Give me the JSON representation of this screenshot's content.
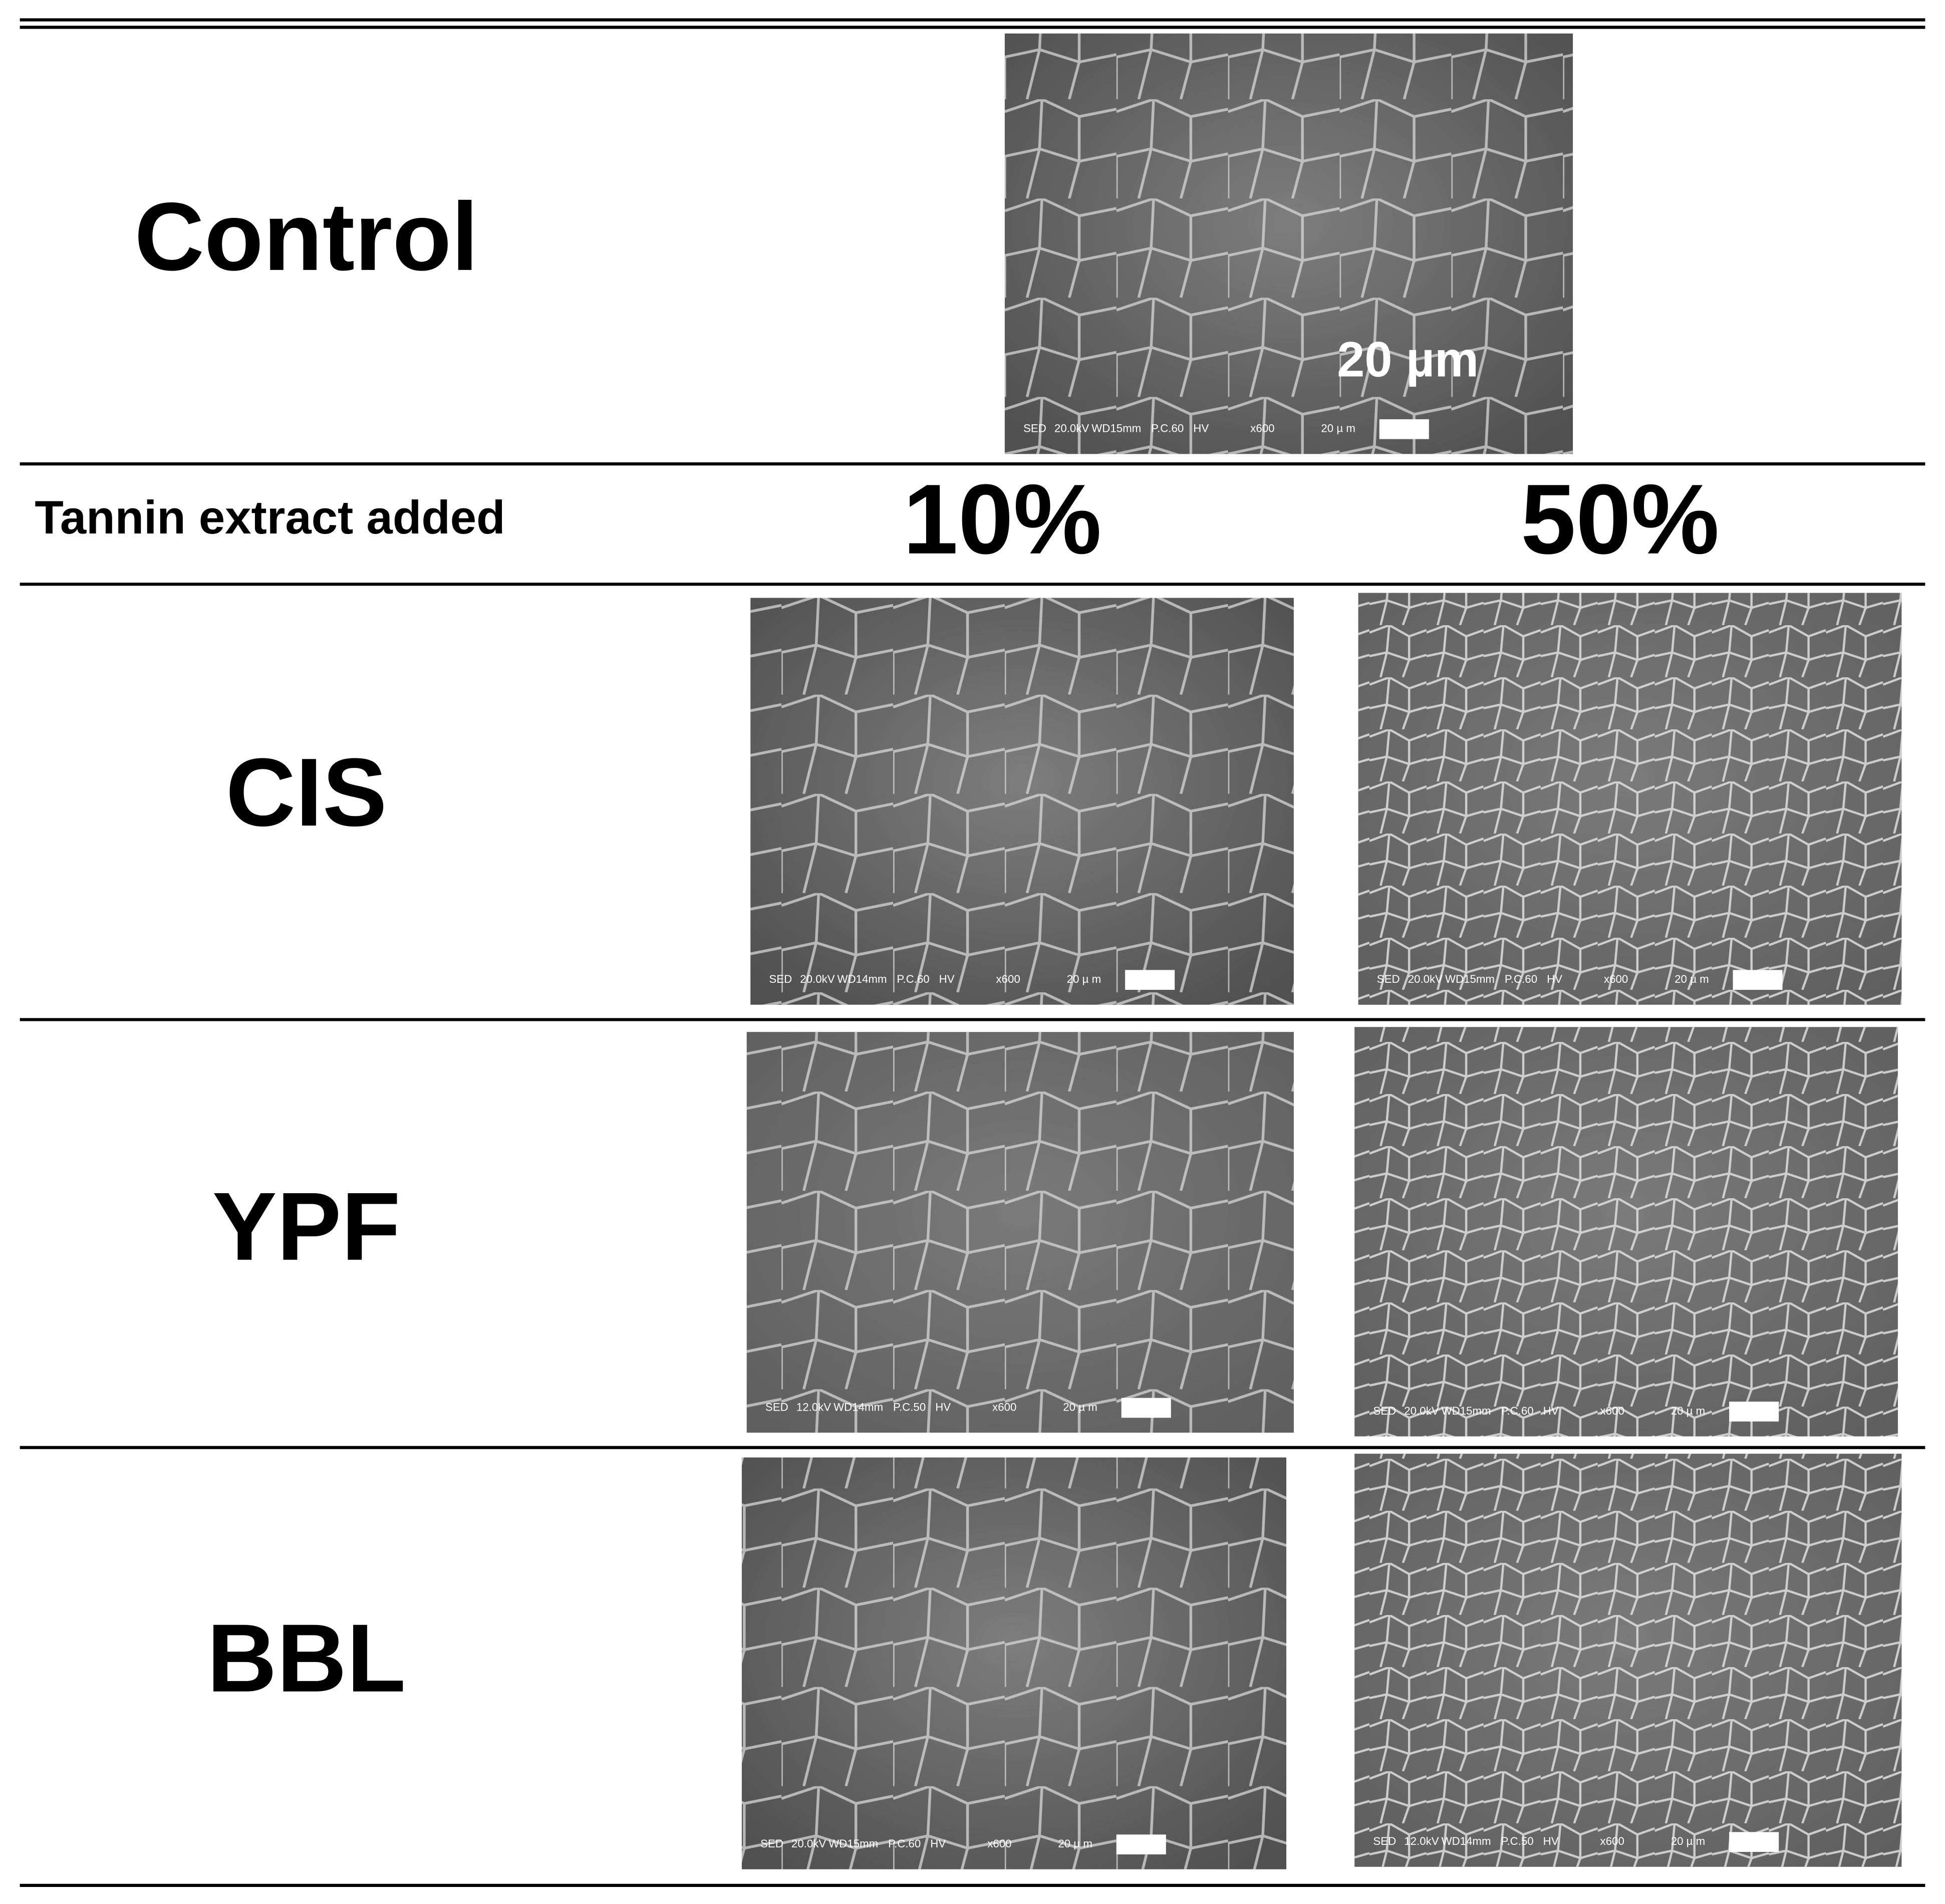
{
  "table": {
    "header_label": "Tannin extract added",
    "columns": [
      "10%",
      "50%"
    ],
    "control": {
      "label": "Control",
      "image": {
        "scale_label": "20 µm",
        "info": [
          "SED",
          "20.0kV",
          "WD15mm",
          "P.C.60",
          "HV",
          "x600",
          "20 µ m"
        ]
      }
    },
    "rows": [
      {
        "label": "CIS",
        "images": [
          {
            "info": [
              "SED",
              "20.0kV",
              "WD14mm",
              "P.C.60",
              "HV",
              "x600",
              "20 µ m"
            ]
          },
          {
            "info": [
              "SED",
              "20.0kV",
              "WD15mm",
              "P.C.60",
              "HV",
              "x600",
              "20 µ m"
            ]
          }
        ]
      },
      {
        "label": "YPF",
        "images": [
          {
            "info": [
              "SED",
              "12.0kV",
              "WD14mm",
              "P.C.50",
              "HV",
              "x600",
              "20 µ m"
            ]
          },
          {
            "info": [
              "SED",
              "20.0kV",
              "WD15mm",
              "P.C.60",
              "HV",
              "x600",
              "20 µ m"
            ]
          }
        ]
      },
      {
        "label": "BBL",
        "images": [
          {
            "info": [
              "SED",
              "20.0kV",
              "WD15mm",
              "P.C.60",
              "HV",
              "x600",
              "20 µ m"
            ]
          },
          {
            "info": [
              "SED",
              "12.0kV",
              "WD14mm",
              "P.C.50",
              "HV",
              "x600",
              "20 µ m"
            ]
          }
        ]
      }
    ]
  }
}
